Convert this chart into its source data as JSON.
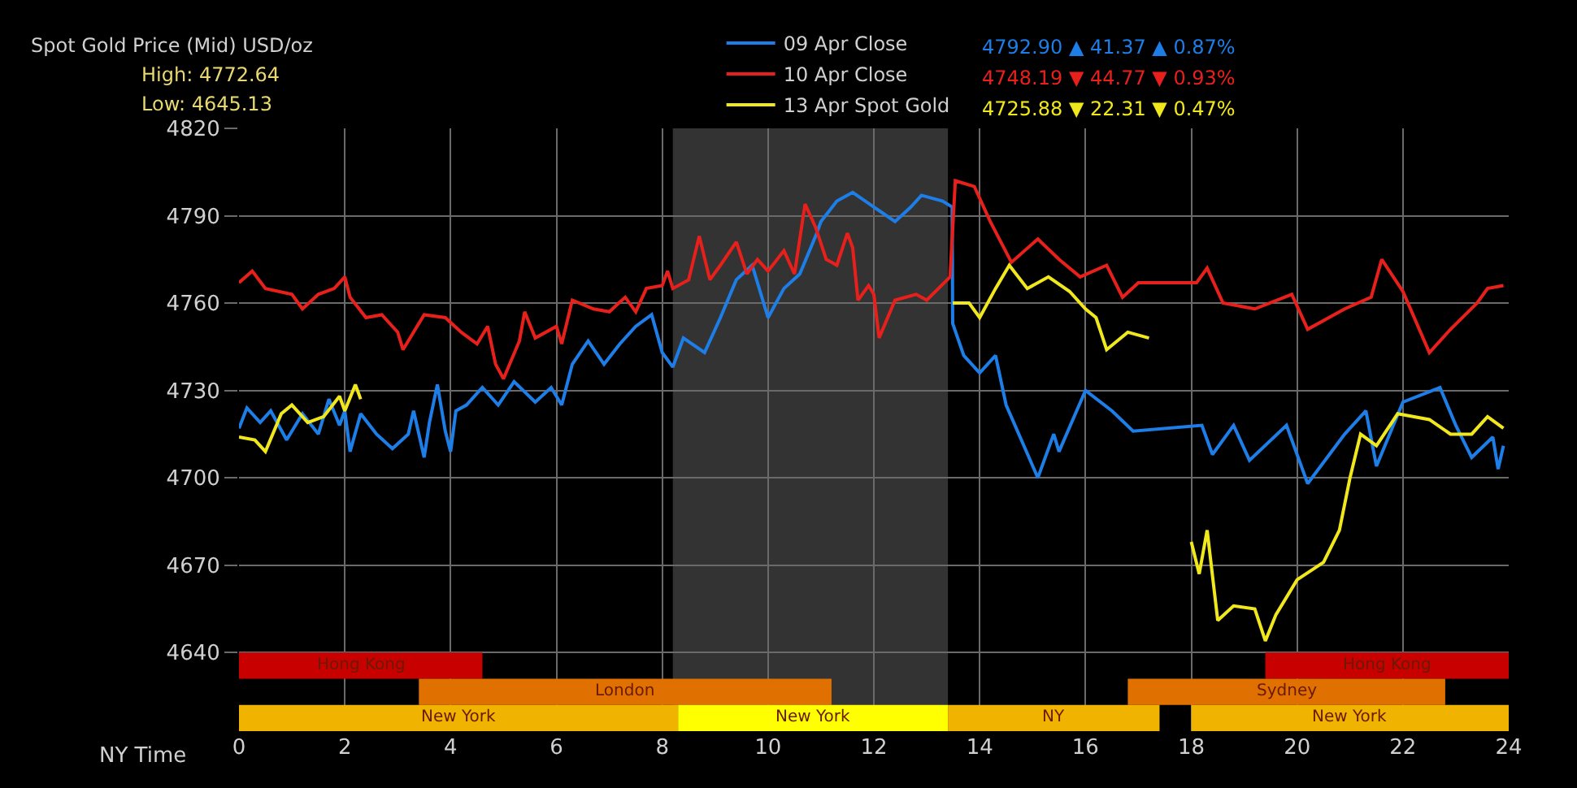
{
  "chart_data": {
    "type": "line",
    "title": "Spot Gold Price (Mid) USD/oz",
    "xlabel": "NY Time",
    "annotations": [
      "High: 4772.64",
      "Low: 4645.13",
      "4792.90 ▲ 41.37 ▲ 0.87%",
      "4748.19 ▼ 44.77 ▼ 0.93%",
      "4725.88 ▼ 22.31 ▼ 0.47%"
    ],
    "xlim": [
      0,
      24
    ],
    "xticks": [
      0,
      2,
      4,
      6,
      8,
      10,
      12,
      14,
      16,
      18,
      20,
      22,
      24
    ],
    "ylim": [
      4613,
      4820
    ],
    "yticks": [
      4640,
      4670,
      4700,
      4730,
      4760,
      4790,
      4820
    ],
    "grid": true,
    "legend": "top right",
    "line_style": "solid",
    "marker": "none",
    "series": [
      {
        "name": "09 Apr Close",
        "color": "#1e7ee8",
        "x": [
          0,
          0.15,
          0.4,
          0.6,
          0.9,
          1.2,
          1.5,
          1.7,
          1.9,
          2.0,
          2.1,
          2.3,
          2.6,
          2.9,
          3.2,
          3.3,
          3.5,
          3.6,
          3.75,
          3.9,
          4.0,
          4.1,
          4.3,
          4.6,
          4.9,
          5.2,
          5.6,
          5.9,
          6.1,
          6.3,
          6.6,
          6.9,
          7.2,
          7.5,
          7.8,
          8.0,
          8.2,
          8.4,
          8.8,
          9.1,
          9.4,
          9.7,
          10.0,
          10.3,
          10.6,
          10.9,
          11.0,
          11.3,
          11.6,
          12.0,
          12.4,
          12.7,
          12.9,
          13.3,
          13.48,
          13.49,
          13.7,
          14.0,
          14.3,
          14.5,
          15.1,
          15.4,
          15.5,
          16.0,
          16.5,
          16.9,
          18.2,
          18.4,
          18.8,
          19.1,
          19.8,
          20.2,
          20.9,
          21.3,
          21.5,
          22.0,
          22.7,
          23.0,
          23.3,
          23.7,
          23.8,
          23.9
        ],
        "values": [
          4717,
          4724,
          4719,
          4723,
          4713,
          4722,
          4715,
          4727,
          4718,
          4723,
          4709,
          4722,
          4715,
          4710,
          4715,
          4723,
          4707,
          4719,
          4732,
          4716,
          4709,
          4723,
          4725,
          4731,
          4725,
          4733,
          4726,
          4731,
          4725,
          4739,
          4747,
          4739,
          4746,
          4752,
          4756,
          4743,
          4738,
          4748,
          4743,
          4755,
          4768,
          4773,
          4755,
          4765,
          4770,
          4783,
          4788,
          4795,
          4798,
          4793,
          4788,
          4793,
          4797,
          4795,
          4793,
          4753,
          4742,
          4736,
          4742,
          4725,
          4700,
          4715,
          4709,
          4730,
          4723,
          4716,
          4718,
          4708,
          4718,
          4706,
          4718,
          4698,
          4715,
          4723,
          4704,
          4726,
          4731,
          4718,
          4707,
          4714,
          4703,
          4711
        ]
      },
      {
        "name": "10 Apr Close",
        "color": "#e8201c",
        "x": [
          0,
          0.25,
          0.5,
          1.0,
          1.2,
          1.5,
          1.8,
          2.0,
          2.1,
          2.4,
          2.7,
          3.0,
          3.1,
          3.5,
          3.9,
          4.2,
          4.5,
          4.7,
          4.85,
          5.0,
          5.3,
          5.4,
          5.6,
          6.0,
          6.1,
          6.3,
          6.7,
          7.0,
          7.3,
          7.5,
          7.7,
          8.0,
          8.1,
          8.2,
          8.5,
          8.7,
          8.9,
          9.1,
          9.4,
          9.6,
          9.8,
          10.0,
          10.3,
          10.5,
          10.7,
          10.9,
          11.1,
          11.3,
          11.5,
          11.6,
          11.7,
          11.9,
          12.0,
          12.1,
          12.4,
          12.8,
          13.0,
          13.44,
          13.54,
          13.9,
          14.2,
          14.6,
          15.1,
          15.5,
          15.9,
          16.4,
          16.7,
          17.0,
          18.1,
          18.3,
          18.6,
          19.2,
          19.9,
          20.2,
          20.9,
          21.4,
          21.6,
          22.0,
          22.5,
          22.9,
          23.4,
          23.6,
          23.9
        ],
        "values": [
          4767,
          4771,
          4765,
          4763,
          4758,
          4763,
          4765,
          4769,
          4762,
          4755,
          4756,
          4750,
          4744,
          4756,
          4755,
          4750,
          4746,
          4752,
          4739,
          4734,
          4747,
          4757,
          4748,
          4752,
          4746,
          4761,
          4758,
          4757,
          4762,
          4757,
          4765,
          4766,
          4771,
          4765,
          4768,
          4783,
          4768,
          4773,
          4781,
          4770,
          4775,
          4771,
          4778,
          4770,
          4794,
          4786,
          4775,
          4773,
          4784,
          4779,
          4761,
          4766,
          4763,
          4748,
          4761,
          4763,
          4761,
          4769,
          4802,
          4800,
          4788,
          4774,
          4782,
          4775,
          4769,
          4773,
          4762,
          4767,
          4767,
          4772,
          4760,
          4758,
          4763,
          4751,
          4758,
          4762,
          4775,
          4764,
          4743,
          4751,
          4760,
          4765,
          4766
        ]
      },
      {
        "name": "13 Apr Spot Gold",
        "color": "#f0e81c",
        "x": [
          0,
          0.3,
          0.5,
          0.8,
          1.0,
          1.3,
          1.6,
          1.9,
          2.0,
          2.2,
          2.3,
          7.9,
          13.49,
          13.8,
          14.0,
          14.3,
          14.56,
          14.9,
          15.3,
          15.7,
          16.0,
          16.2,
          16.4,
          16.8,
          17.2,
          17.6,
          18.0,
          18.15,
          18.3,
          18.5,
          18.8,
          19.2,
          19.4,
          19.6,
          20.0,
          20.5,
          20.8,
          21.0,
          21.2,
          21.5,
          21.9,
          22.5,
          22.9,
          23.3,
          23.6,
          23.9
        ],
        "values": [
          4714,
          4713,
          4709,
          4722,
          4725,
          4719,
          4721,
          4728,
          4723,
          4732,
          4727,
          null,
          4760,
          4760,
          4755,
          4765,
          4773,
          4765,
          4769,
          4764,
          4758,
          4755,
          4744,
          4750,
          4748,
          null,
          4678,
          4667,
          4682,
          4651,
          4656,
          4655,
          4644,
          4653,
          4665,
          4671,
          4682,
          4700,
          4715,
          4711,
          4722,
          4720,
          4715,
          4715,
          4721,
          4717
        ]
      }
    ],
    "bands": [
      {
        "axis": "x",
        "from": 8.2,
        "to": 13.4,
        "color": "#333333"
      },
      {
        "axis": "x",
        "from": 0,
        "to": 4.6,
        "label": "Hong Kong",
        "color": "#c80000"
      },
      {
        "axis": "x",
        "from": 19.4,
        "to": 24,
        "label": "Hong Kong",
        "color": "#c80000"
      },
      {
        "axis": "x",
        "from": 3.4,
        "to": 11.2,
        "label": "London",
        "color": "#e07000"
      },
      {
        "axis": "x",
        "from": 16.8,
        "to": 22.8,
        "label": "Sydney",
        "color": "#e07000"
      },
      {
        "axis": "x",
        "from": 0,
        "to": 8.3,
        "label": "New York",
        "color": "#f0b400"
      },
      {
        "axis": "x",
        "from": 8.3,
        "to": 13.4,
        "label": "New York",
        "color": "#ffff00"
      },
      {
        "axis": "x",
        "from": 13.4,
        "to": 17.4,
        "label": "NY",
        "color": "#f0b400"
      },
      {
        "axis": "x",
        "from": 18,
        "to": 24,
        "label": "New York",
        "color": "#f0b400"
      }
    ]
  }
}
